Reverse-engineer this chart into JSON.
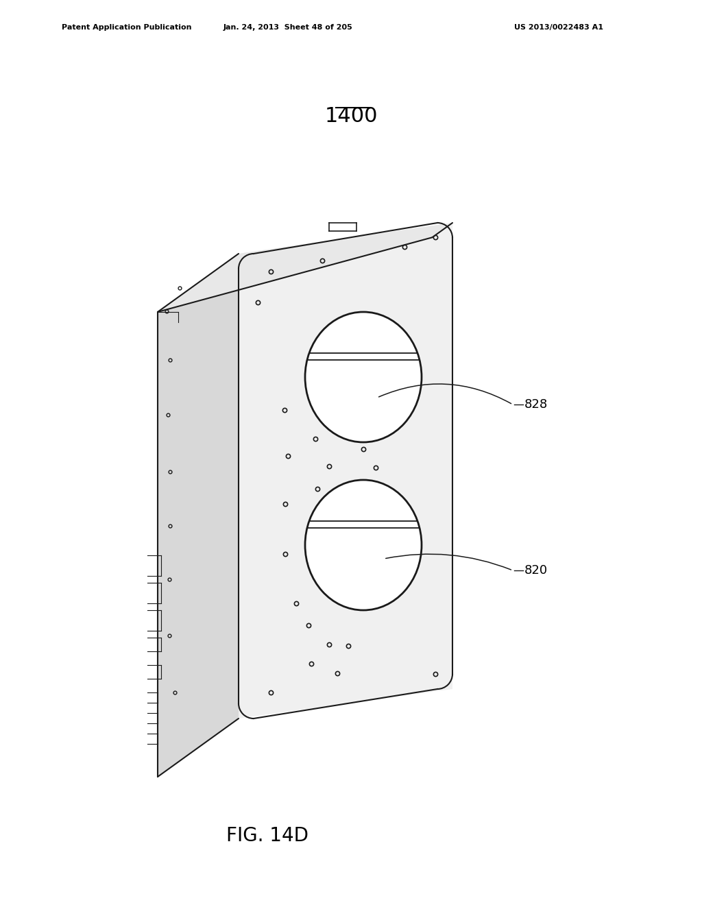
{
  "bg_color": "#ffffff",
  "header_left": "Patent Application Publication",
  "header_center": "Jan. 24, 2013  Sheet 48 of 205",
  "header_right": "US 2013/0022483 A1",
  "figure_label": "FIG. 14D",
  "title_text": "1400",
  "label_828": "828",
  "label_820": "820",
  "line_color": "#1a1a1a",
  "line_width": 1.5,
  "thin_line": 0.8
}
